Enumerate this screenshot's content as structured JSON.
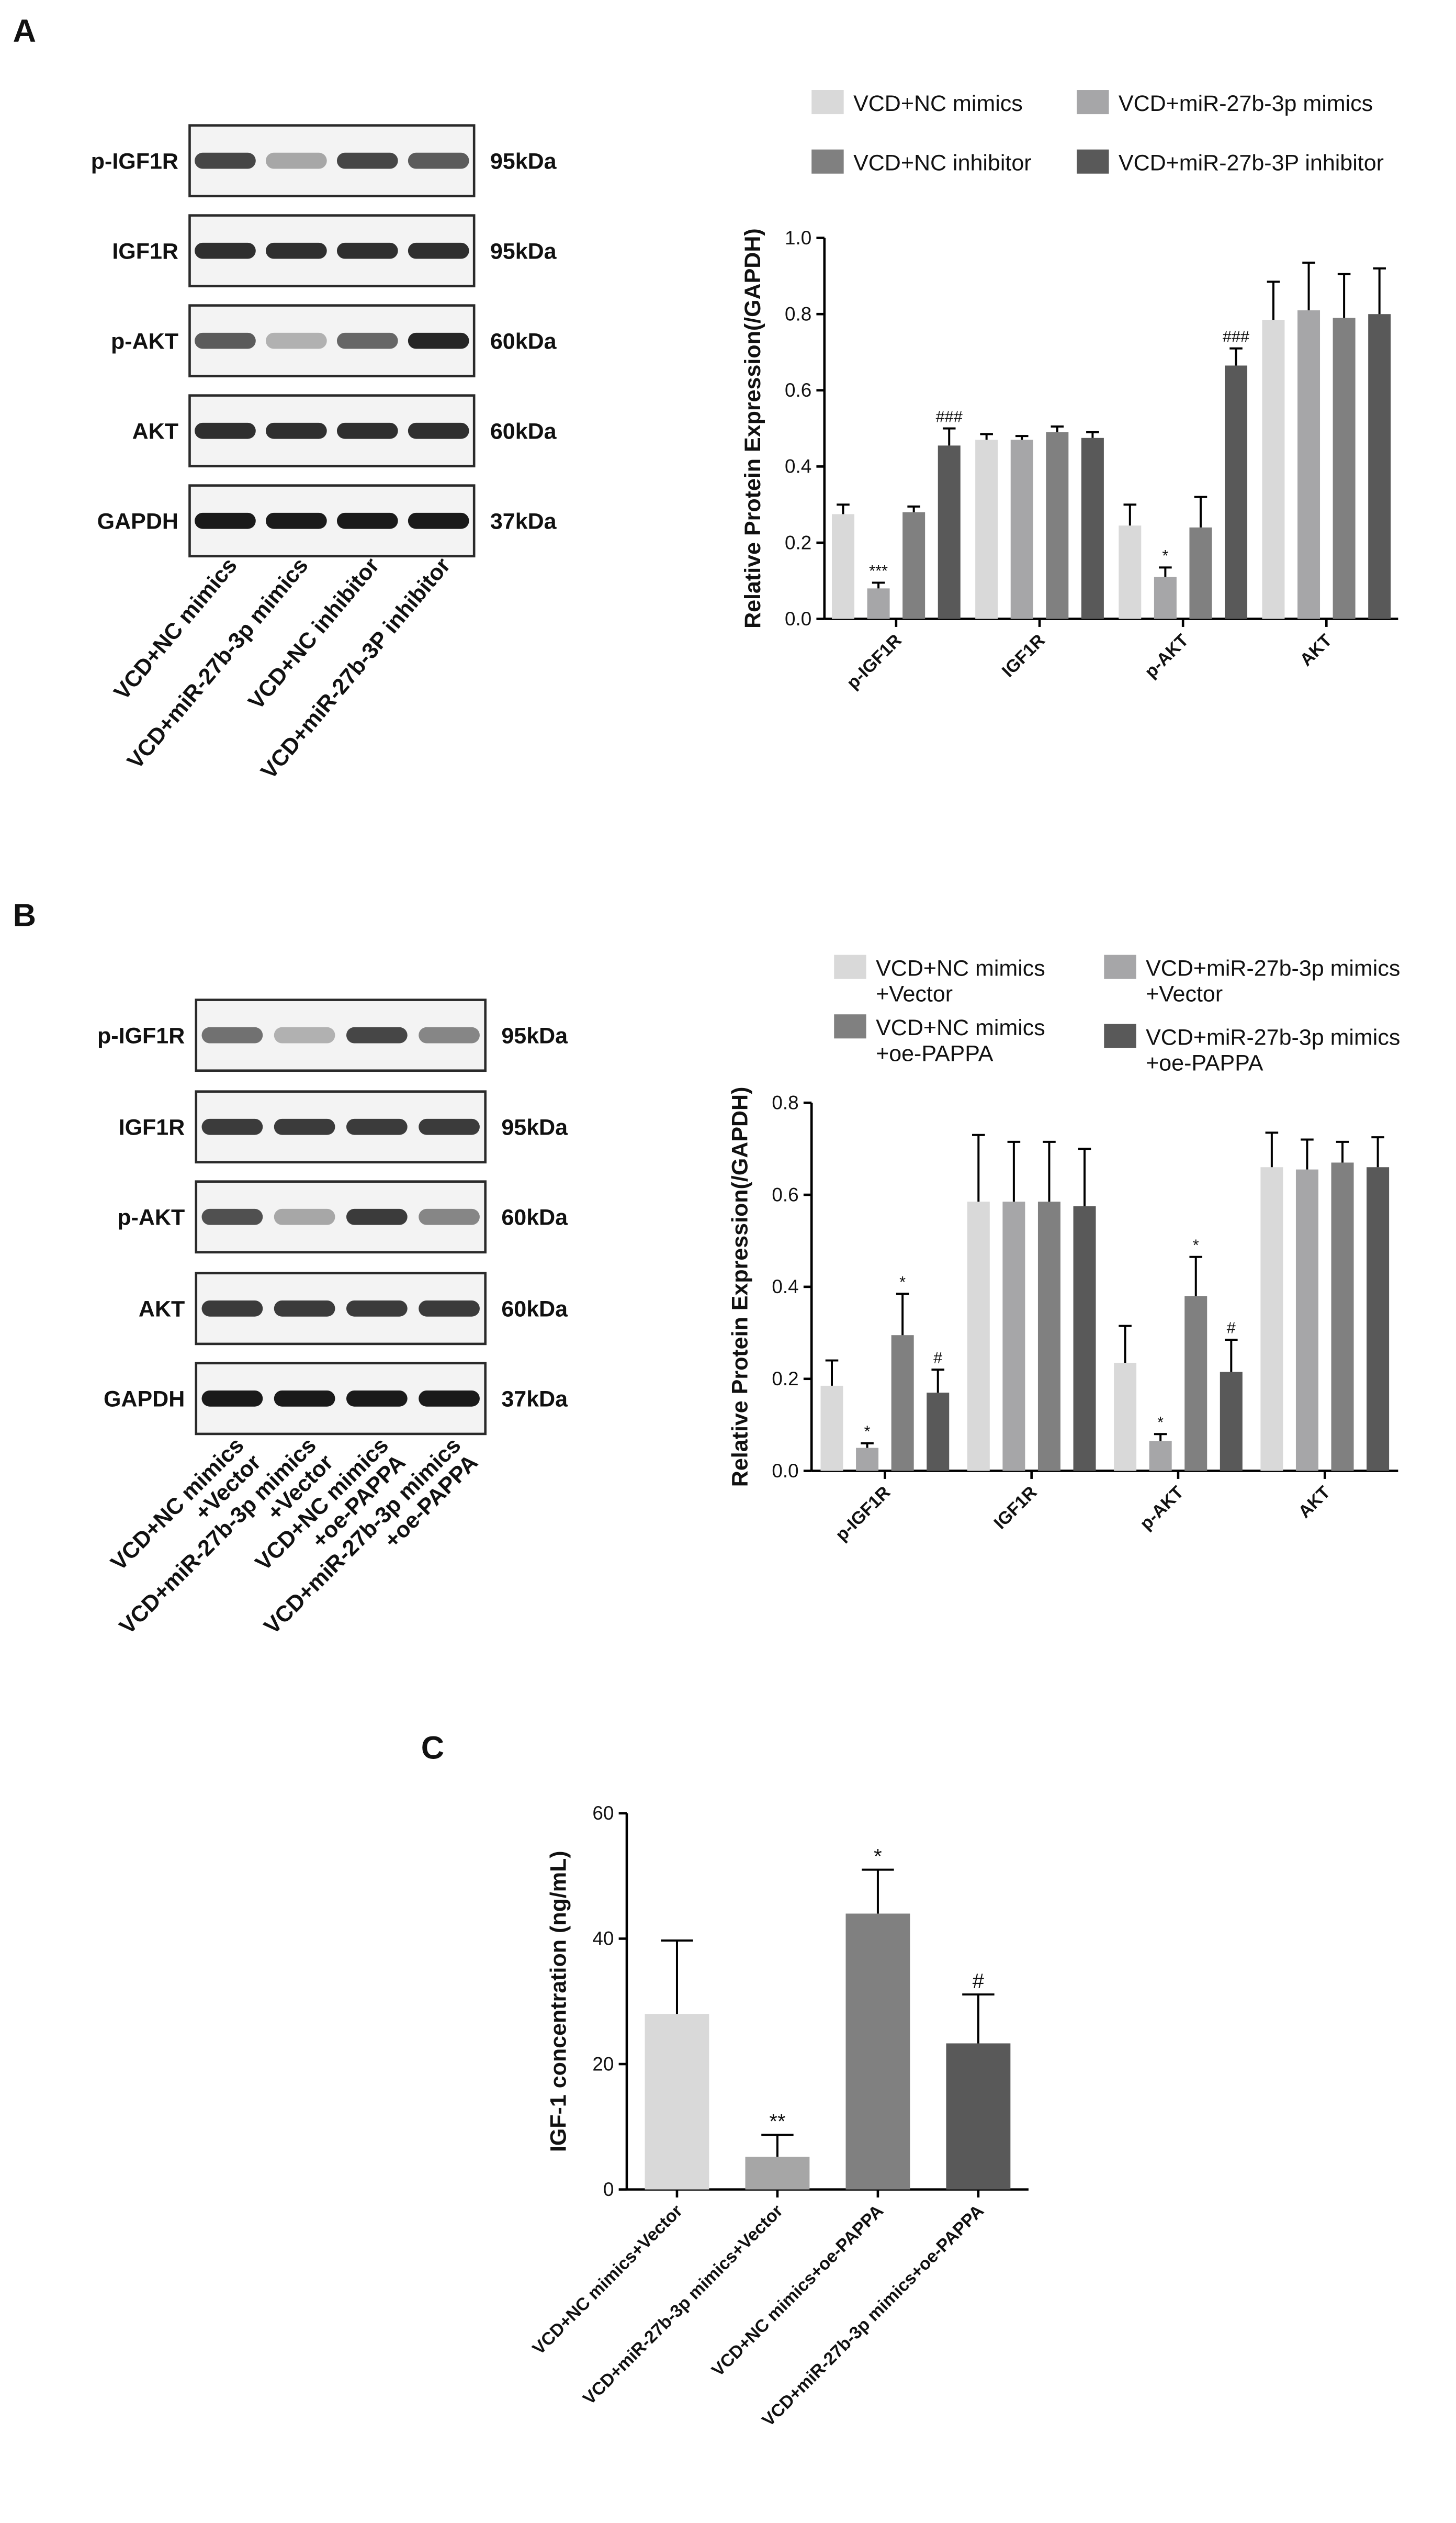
{
  "panels": [
    "A",
    "B",
    "C"
  ],
  "blots": [
    {
      "proteins": [
        "p-IGF1R",
        "IGF1R",
        "p-AKT",
        "AKT",
        "GAPDH"
      ],
      "sizes": [
        "95kDa",
        "95kDa",
        "60kDa",
        "60kDa",
        "37kDa"
      ],
      "lanes": [
        "VCD+NC mimics",
        "VCD+miR-27b-3p mimics",
        "VCD+NC inhibitor",
        "VCD+miR-27b-3P inhibitor"
      ]
    },
    {
      "proteins": [
        "p-IGF1R",
        "IGF1R",
        "p-AKT",
        "AKT",
        "GAPDH"
      ],
      "sizes": [
        "95kDa",
        "95kDa",
        "60kDa",
        "60kDa",
        "37kDa"
      ],
      "lanes": [
        "VCD+NC mimics\n+Vector",
        "VCD+miR-27b-3p mimics\n+Vector",
        "VCD+NC mimics\n+oe-PAPPA",
        "VCD+miR-27b-3p mimics\n+oe-PAPPA"
      ]
    }
  ],
  "chart_data": [
    {
      "type": "bar",
      "y_label": "Relative Protein Expression(/GAPDH)",
      "categories": [
        "p-IGF1R",
        "IGF1R",
        "p-AKT",
        "AKT"
      ],
      "series": [
        {
          "name": "VCD+NC mimics",
          "color": "#d9d9d9",
          "values": [
            0.275,
            0.47,
            0.245,
            0.785
          ],
          "errors": [
            0.025,
            0.015,
            0.055,
            0.1
          ]
        },
        {
          "name": "VCD+miR-27b-3p mimics",
          "color": "#a6a6a8",
          "values": [
            0.08,
            0.47,
            0.11,
            0.81
          ],
          "errors": [
            0.015,
            0.01,
            0.025,
            0.125
          ]
        },
        {
          "name": "VCD+NC inhibitor",
          "color": "#808080",
          "values": [
            0.28,
            0.49,
            0.24,
            0.79
          ],
          "errors": [
            0.015,
            0.015,
            0.08,
            0.115
          ]
        },
        {
          "name": "VCD+miR-27b-3P inhibitor",
          "color": "#595959",
          "values": [
            0.455,
            0.475,
            0.665,
            0.8
          ],
          "errors": [
            0.045,
            0.015,
            0.045,
            0.12
          ]
        }
      ],
      "annotations": [
        {
          "series": 1,
          "category": 0,
          "text": "***"
        },
        {
          "series": 3,
          "category": 0,
          "text": "###"
        },
        {
          "series": 1,
          "category": 2,
          "text": "*"
        },
        {
          "series": 3,
          "category": 2,
          "text": "###"
        }
      ],
      "ylim": [
        0,
        1.0
      ],
      "yticks": [
        {
          "value": 0,
          "label": "0.0"
        },
        0.2,
        0.4,
        0.6,
        0.8,
        {
          "value": 1.0,
          "label": "1.0"
        }
      ]
    },
    {
      "type": "bar",
      "y_label": "Relative Protein Expression(/GAPDH)",
      "categories": [
        "p-IGF1R",
        "IGF1R",
        "p-AKT",
        "AKT"
      ],
      "series": [
        {
          "name": "VCD+NC mimics\n+Vector",
          "color": "#d9d9d9",
          "values": [
            0.185,
            0.585,
            0.235,
            0.66
          ],
          "errors": [
            0.055,
            0.145,
            0.08,
            0.075
          ]
        },
        {
          "name": "VCD+miR-27b-3p mimics\n+Vector",
          "color": "#a6a6a8",
          "values": [
            0.05,
            0.585,
            0.065,
            0.655
          ],
          "errors": [
            0.01,
            0.13,
            0.015,
            0.065
          ]
        },
        {
          "name": "VCD+NC mimics\n+oe-PAPPA",
          "color": "#808080",
          "values": [
            0.295,
            0.585,
            0.38,
            0.67
          ],
          "errors": [
            0.09,
            0.13,
            0.085,
            0.045
          ]
        },
        {
          "name": "VCD+miR-27b-3p mimics\n+oe-PAPPA",
          "color": "#595959",
          "values": [
            0.17,
            0.575,
            0.215,
            0.66
          ],
          "errors": [
            0.05,
            0.125,
            0.07,
            0.065
          ]
        }
      ],
      "annotations": [
        {
          "series": 1,
          "category": 0,
          "text": "*"
        },
        {
          "series": 2,
          "category": 0,
          "text": "*"
        },
        {
          "series": 3,
          "category": 0,
          "text": "#"
        },
        {
          "series": 1,
          "category": 2,
          "text": "*"
        },
        {
          "series": 2,
          "category": 2,
          "text": "*"
        },
        {
          "series": 3,
          "category": 2,
          "text": "#"
        }
      ],
      "ylim": [
        0,
        0.8
      ],
      "yticks": [
        {
          "value": 0,
          "label": "0.0"
        },
        0.2,
        0.4,
        0.6,
        0.8
      ]
    },
    {
      "type": "bar",
      "y_label": "IGF-1 concentration (ng/mL)",
      "categories": [
        "VCD+NC mimics+Vector",
        "VCD+miR-27b-3p mimics+Vector",
        "VCD+NC mimics+oe-PAPPA",
        "VCD+miR-27b-3p mimics+oe-PAPPA"
      ],
      "series": [
        {
          "colors": [
            "#d9d9d9",
            "#a6a6a6",
            "#808080",
            "#595959"
          ],
          "values": [
            28,
            5.2,
            44,
            23.3
          ],
          "errors": [
            11.7,
            3.5,
            7,
            7.8
          ]
        }
      ],
      "annotations": [
        {
          "series": 0,
          "category": 1,
          "text": "**"
        },
        {
          "series": 0,
          "category": 2,
          "text": "*"
        },
        {
          "series": 0,
          "category": 3,
          "text": "#"
        }
      ],
      "ylim": [
        0,
        60
      ],
      "yticks": [
        0,
        20,
        40,
        60
      ]
    }
  ]
}
